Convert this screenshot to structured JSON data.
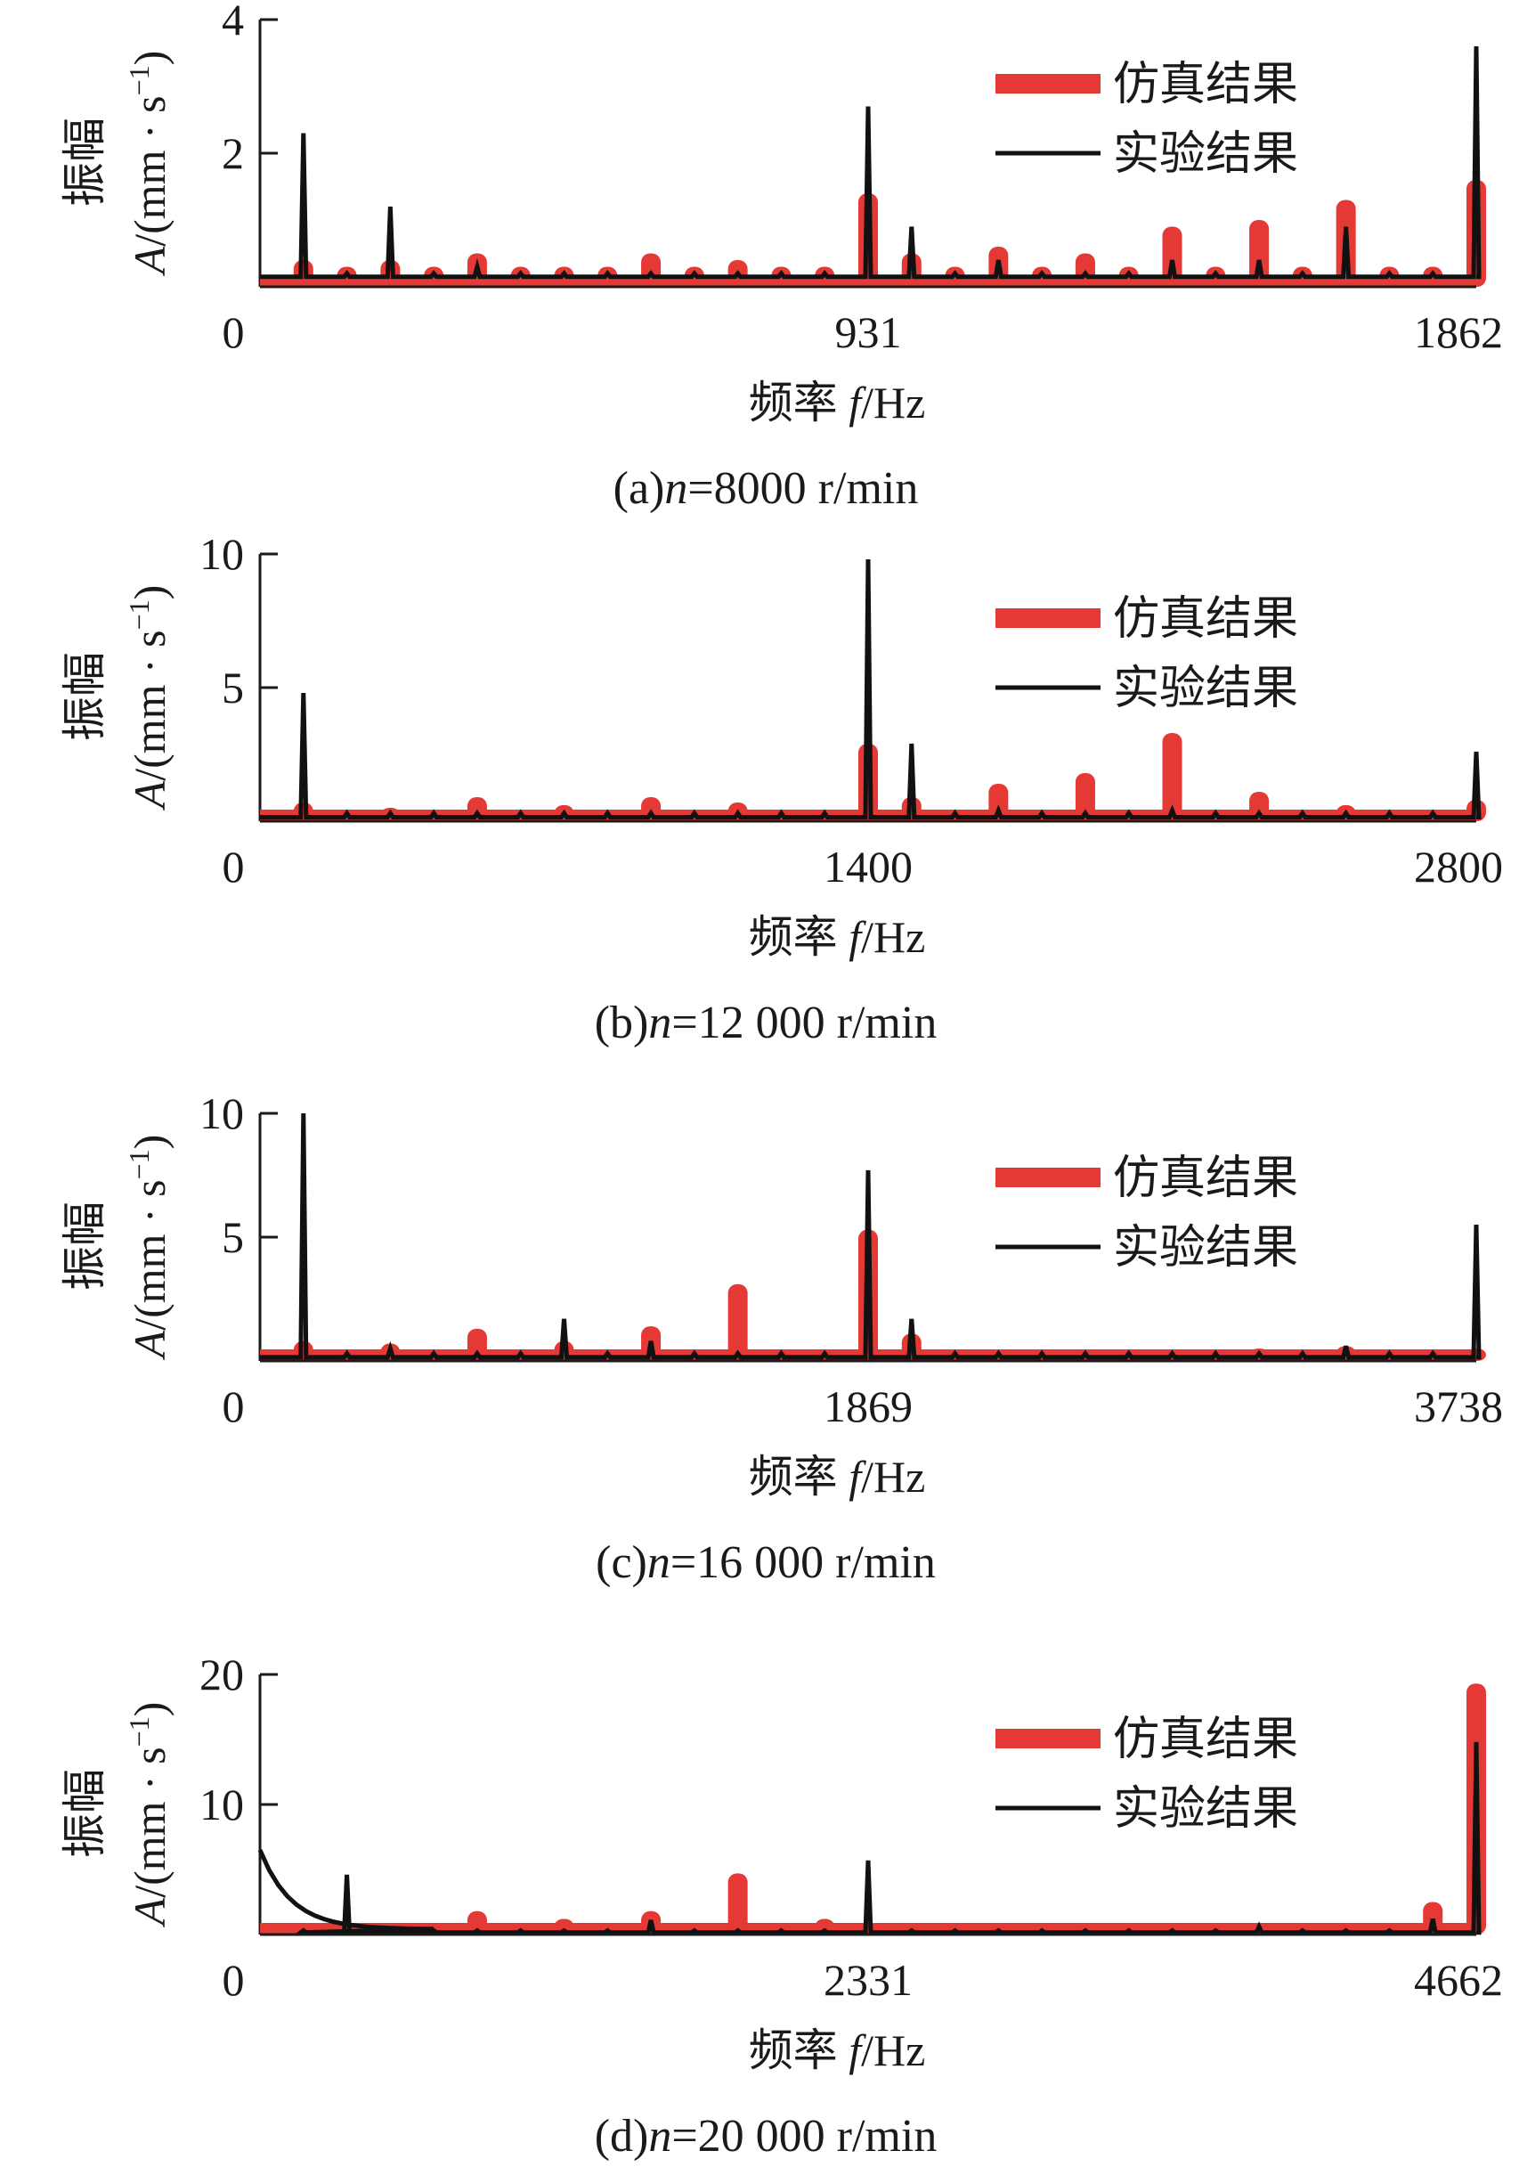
{
  "colors": {
    "simulation": "#e53935",
    "experiment": "#111111",
    "axis": "#1a1a1a"
  },
  "legend": {
    "simulation": "仿真结果",
    "experiment": "实验结果"
  },
  "axes": {
    "xlabel_prefix": "频率 ",
    "xlabel_symbol": "f",
    "xlabel_unit": "/Hz",
    "ylabel_top": "振幅",
    "ylabel_symbol": "A",
    "ylabel_unit": "/(mm · s",
    "ylabel_exp": "−1",
    "ylabel_close": ")"
  },
  "chart_data": [
    {
      "type": "line",
      "caption": "(a)n=8000 r/min",
      "caption_prefix": "(a)",
      "caption_n": "n",
      "caption_rest": "=8000 r/min",
      "xlim": [
        0,
        1862
      ],
      "ylim": [
        0,
        4
      ],
      "xticks": [
        "0",
        "931",
        "1862"
      ],
      "yticks": [
        "2",
        "4"
      ],
      "yticks_values": [
        2,
        4
      ],
      "series": [
        {
          "name": "仿真结果",
          "x": [
            66.5,
            133,
            199.5,
            266,
            332.5,
            399,
            465.5,
            532,
            598.5,
            665,
            731.5,
            798,
            864.5,
            931,
            997.5,
            1064,
            1130.5,
            1197,
            1263.5,
            1330,
            1396.5,
            1463,
            1529.5,
            1596,
            1662.5,
            1729,
            1795.5,
            1862
          ],
          "values": [
            0.4,
            0.3,
            0.4,
            0.3,
            0.5,
            0.3,
            0.3,
            0.3,
            0.5,
            0.3,
            0.4,
            0.3,
            0.3,
            1.4,
            0.5,
            0.3,
            0.6,
            0.3,
            0.5,
            0.3,
            0.9,
            0.3,
            1.0,
            0.3,
            1.3,
            0.3,
            0.3,
            1.6
          ]
        },
        {
          "name": "实验结果",
          "x": [
            66.5,
            133,
            199.5,
            266,
            332.5,
            399,
            465.5,
            532,
            598.5,
            665,
            731.5,
            798,
            864.5,
            931,
            997.5,
            1064,
            1130.5,
            1197,
            1263.5,
            1330,
            1396.5,
            1463,
            1529.5,
            1596,
            1662.5,
            1729,
            1795.5,
            1862
          ],
          "values": [
            2.3,
            0.2,
            1.2,
            0.2,
            0.3,
            0.2,
            0.2,
            0.2,
            0.2,
            0.2,
            0.2,
            0.2,
            0.2,
            2.7,
            0.9,
            0.2,
            0.4,
            0.2,
            0.2,
            0.2,
            0.4,
            0.2,
            0.4,
            0.2,
            0.9,
            0.2,
            0.2,
            3.6
          ]
        }
      ]
    },
    {
      "type": "line",
      "caption": "(b)n=12 000 r/min",
      "caption_prefix": "(b)",
      "caption_n": "n",
      "caption_rest": "=12 000 r/min",
      "xlim": [
        0,
        2800
      ],
      "ylim": [
        0,
        10
      ],
      "xticks": [
        "0",
        "1400",
        "2800"
      ],
      "yticks": [
        "5",
        "10"
      ],
      "yticks_values": [
        5,
        10
      ],
      "series": [
        {
          "name": "仿真结果",
          "x": [
            100,
            200,
            300,
            400,
            500,
            600,
            700,
            800,
            900,
            1000,
            1100,
            1200,
            1300,
            1400,
            1500,
            1600,
            1700,
            1800,
            1900,
            2000,
            2100,
            2200,
            2300,
            2400,
            2500,
            2600,
            2700,
            2800
          ],
          "values": [
            0.7,
            0.3,
            0.5,
            0.3,
            0.9,
            0.3,
            0.6,
            0.3,
            0.9,
            0.3,
            0.7,
            0.3,
            0.3,
            2.9,
            0.9,
            0.3,
            1.4,
            0.3,
            1.8,
            0.3,
            3.3,
            0.3,
            1.1,
            0.3,
            0.6,
            0.3,
            0.3,
            0.8
          ]
        },
        {
          "name": "实验结果",
          "x": [
            100,
            200,
            300,
            400,
            500,
            600,
            700,
            800,
            900,
            1000,
            1100,
            1200,
            1300,
            1400,
            1500,
            1600,
            1700,
            1800,
            1900,
            2000,
            2100,
            2200,
            2300,
            2400,
            2500,
            2600,
            2700,
            2800
          ],
          "values": [
            4.8,
            0.3,
            0.3,
            0.3,
            0.3,
            0.3,
            0.3,
            0.3,
            0.3,
            0.3,
            0.3,
            0.3,
            0.3,
            9.8,
            2.9,
            0.3,
            0.4,
            0.3,
            0.3,
            0.3,
            0.4,
            0.3,
            0.3,
            0.3,
            0.3,
            0.3,
            0.3,
            2.6
          ]
        }
      ]
    },
    {
      "type": "line",
      "caption": "(c)n=16 000 r/min",
      "caption_prefix": "(c)",
      "caption_n": "n",
      "caption_rest": "=16 000 r/min",
      "xlim": [
        0,
        3738
      ],
      "ylim": [
        0,
        10
      ],
      "xticks": [
        "0",
        "1869",
        "3738"
      ],
      "yticks": [
        "5",
        "10"
      ],
      "yticks_values": [
        5,
        10
      ],
      "series": [
        {
          "name": "仿真结果",
          "x": [
            133.5,
            267,
            400.5,
            534,
            667.5,
            801,
            934.5,
            1068,
            1201.5,
            1335,
            1468.5,
            1602,
            1735.5,
            1869,
            2002.5,
            2136,
            2269.5,
            2403,
            2536.5,
            2670,
            2803.5,
            2937,
            3070.5,
            3204,
            3337.5,
            3471,
            3604.5,
            3738
          ],
          "values": [
            0.8,
            0.3,
            0.7,
            0.3,
            1.3,
            0.3,
            0.8,
            0.3,
            1.4,
            0.3,
            3.1,
            0.3,
            0.3,
            5.3,
            1.1,
            0.3,
            0.4,
            0.3,
            0.4,
            0.3,
            0.4,
            0.3,
            0.5,
            0.3,
            0.6,
            0.3,
            0.3,
            0.5
          ]
        },
        {
          "name": "实验结果",
          "x": [
            133.5,
            267,
            400.5,
            534,
            667.5,
            801,
            934.5,
            1068,
            1201.5,
            1335,
            1468.5,
            1602,
            1735.5,
            1869,
            2002.5,
            2136,
            2269.5,
            2403,
            2536.5,
            2670,
            2803.5,
            2937,
            3070.5,
            3204,
            3337.5,
            3471,
            3604.5,
            3738
          ],
          "values": [
            10,
            0.3,
            0.5,
            0.3,
            0.3,
            0.3,
            1.7,
            0.3,
            0.8,
            0.3,
            0.3,
            0.3,
            0.3,
            7.7,
            1.7,
            0.3,
            0.3,
            0.3,
            0.3,
            0.3,
            0.3,
            0.3,
            0.3,
            0.3,
            0.6,
            0.3,
            0.3,
            5.5
          ]
        }
      ]
    },
    {
      "type": "line",
      "caption": "(d)n=20 000 r/min",
      "caption_prefix": "(d)",
      "caption_n": "n",
      "caption_rest": "=20 000 r/min",
      "xlim": [
        0,
        4662
      ],
      "ylim": [
        0,
        20
      ],
      "xticks": [
        "0",
        "2331",
        "4662"
      ],
      "yticks": [
        "10",
        "20"
      ],
      "yticks_values": [
        10,
        20
      ],
      "series": [
        {
          "name": "仿真结果",
          "x": [
            166.5,
            333,
            499.5,
            666,
            832.5,
            999,
            1165.5,
            1332,
            1498.5,
            1665,
            1831.5,
            1998,
            2164.5,
            2331,
            2497.5,
            2664,
            2830.5,
            2997,
            3163.5,
            3330,
            3496.5,
            3663,
            3829.5,
            3996,
            4162.5,
            4329,
            4495.5,
            4662
          ],
          "values": [
            0.3,
            0.3,
            0.3,
            0.3,
            1.8,
            0.3,
            1.2,
            0.3,
            1.8,
            0.3,
            4.7,
            0.3,
            1.2,
            0.3,
            0.3,
            0.3,
            0.3,
            0.3,
            0.3,
            0.3,
            0.3,
            0.3,
            0.3,
            0.3,
            0.3,
            0.3,
            2.5,
            19.3
          ]
        },
        {
          "name": "实验结果",
          "x": [
            166.5,
            333,
            499.5,
            666,
            832.5,
            999,
            1165.5,
            1332,
            1498.5,
            1665,
            1831.5,
            1998,
            2164.5,
            2331,
            2497.5,
            2664,
            2830.5,
            2997,
            3163.5,
            3330,
            3496.5,
            3663,
            3829.5,
            3996,
            4162.5,
            4329,
            4495.5,
            4662
          ],
          "values": [
            0.3,
            4.6,
            0.3,
            0.3,
            0.3,
            0.3,
            0.3,
            0.3,
            1.1,
            0.3,
            0.3,
            0.3,
            0.3,
            5.7,
            0.3,
            0.3,
            0.3,
            0.3,
            0.3,
            0.3,
            0.3,
            0.3,
            0.6,
            0.3,
            0.3,
            0.3,
            1.2,
            14.8
          ]
        }
      ]
    }
  ]
}
